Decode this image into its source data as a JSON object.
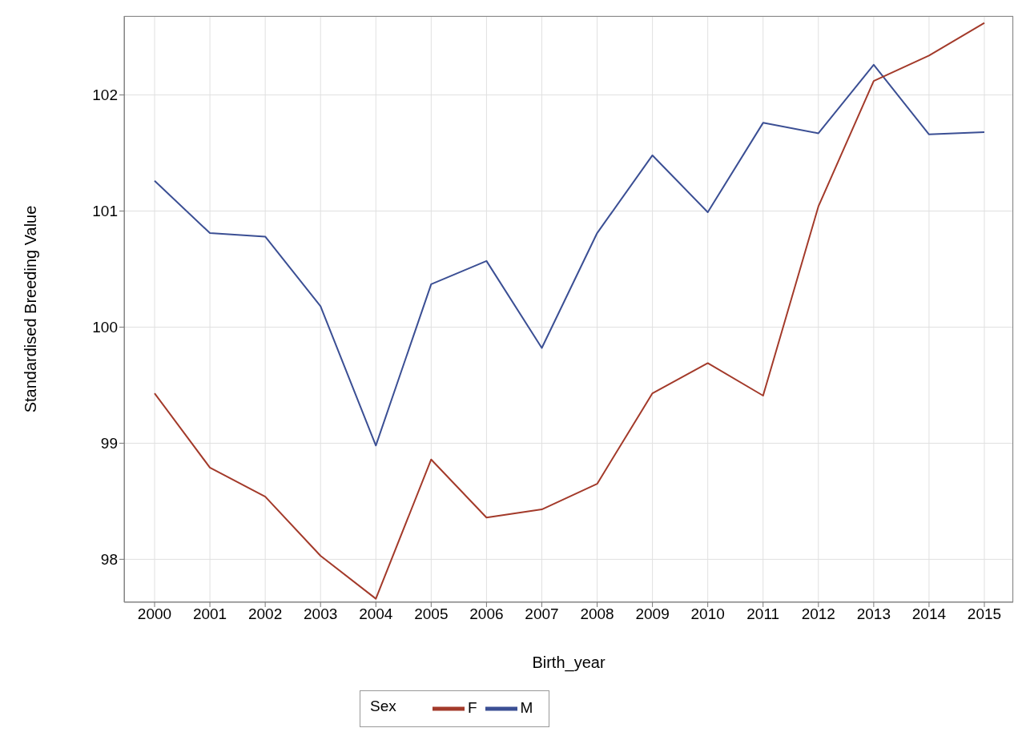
{
  "chart_data": {
    "type": "line",
    "xlabel": "Birth_year",
    "ylabel": "Standardised Breeding Value",
    "legend_title": "Sex",
    "categories": [
      "2000",
      "2001",
      "2002",
      "2003",
      "2004",
      "2005",
      "2006",
      "2007",
      "2008",
      "2009",
      "2010",
      "2011",
      "2012",
      "2013",
      "2014",
      "2015"
    ],
    "series": [
      {
        "name": "M",
        "color": "#3b4f94",
        "values": [
          101.26,
          100.81,
          100.78,
          100.18,
          98.98,
          100.37,
          100.57,
          99.82,
          100.81,
          101.48,
          100.99,
          101.76,
          101.67,
          102.26,
          101.66,
          101.68
        ]
      },
      {
        "name": "F",
        "color": "#a33a2a",
        "values": [
          99.43,
          98.79,
          98.54,
          98.03,
          97.66,
          98.86,
          98.36,
          98.43,
          98.65,
          99.43,
          99.69,
          99.41,
          101.04,
          102.12,
          102.34,
          102.62
        ]
      }
    ],
    "ylim": [
      97.63,
      102.68
    ],
    "yticks": [
      98,
      99,
      100,
      101,
      102
    ],
    "grid": true,
    "legend": "bottom",
    "line_style": "solid",
    "marker": "none"
  }
}
